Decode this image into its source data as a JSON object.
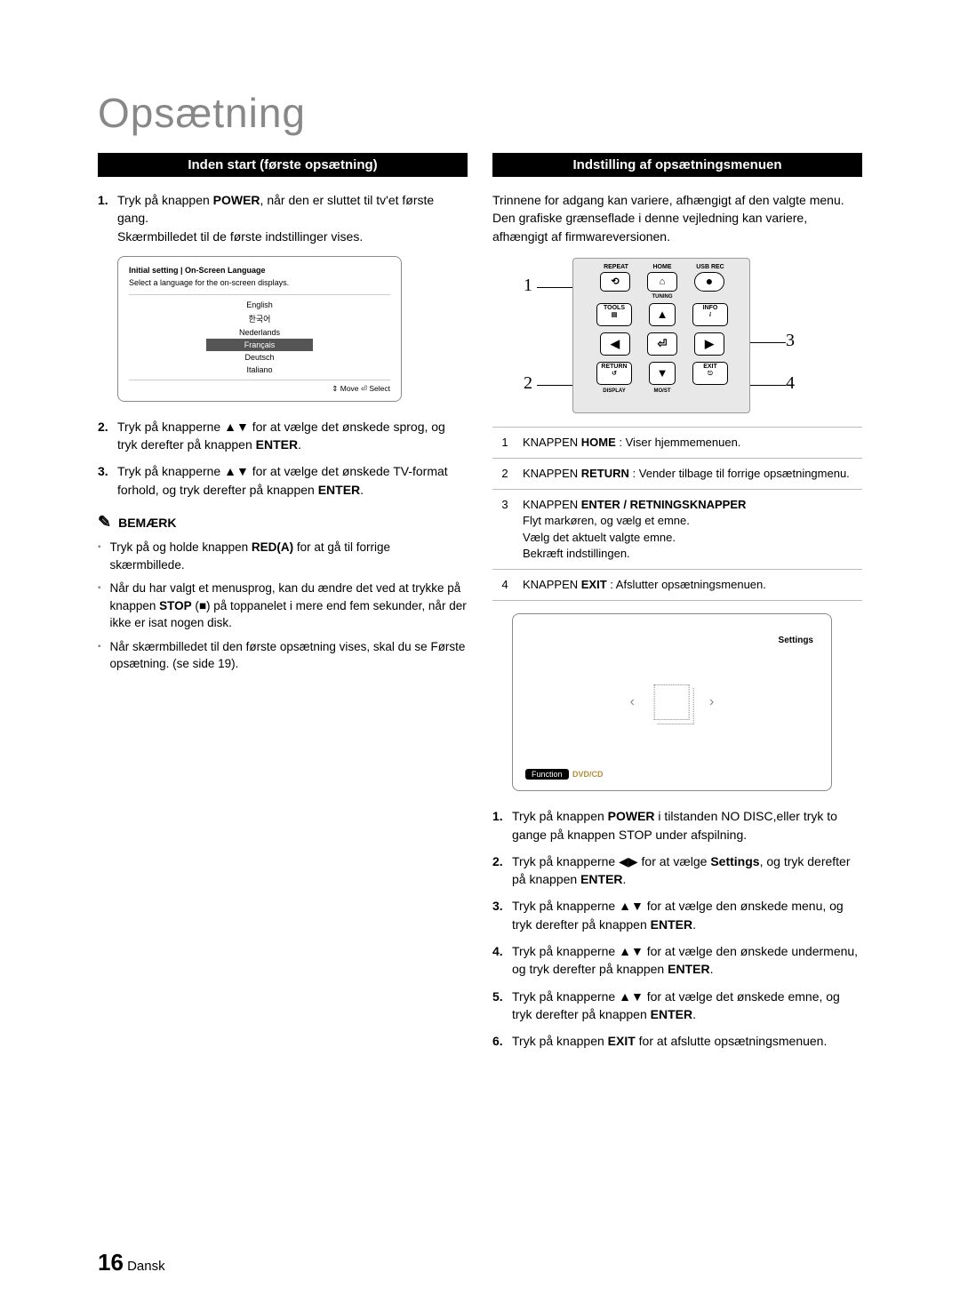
{
  "page_title": "Opsætning",
  "left": {
    "heading": "Inden start (første opsætning)",
    "steps": [
      "Tryk på knappen <b>POWER</b>, når den er sluttet til tv'et første gang.<br>Skærmbilledet til de første indstillinger vises.",
      "Tryk på knapperne ▲▼ for at vælge det ønskede sprog, og tryk derefter på knappen <b>ENTER</b>.",
      "Tryk på knapperne ▲▼ for at vælge det ønskede TV-format forhold, og tryk derefter på knappen <b>ENTER</b>."
    ],
    "lang_box": {
      "title": "Initial setting | On-Screen Language",
      "subtitle": "Select a language for the on-screen displays.",
      "items": [
        "English",
        "한국어",
        "Nederlands",
        "Français",
        "Deutsch",
        "Italiano"
      ],
      "selected_index": 3,
      "bottom": "⇕ Move    ⏎ Select"
    },
    "note_label": "BEMÆRK",
    "notes": [
      "Tryk på og holde knappen <b>RED(A)</b> for at gå til forrige skærmbillede.",
      "Når du har valgt et menusprog, kan du ændre det ved at trykke på knappen <b>STOP</b> (■) på toppanelet i mere end fem sekunder, når der ikke er isat nogen disk.",
      "Når skærmbilledet til den første opsætning vises, skal du se Første opsætning. (se side 19)."
    ]
  },
  "right": {
    "heading": "Indstilling af opsætningsmenuen",
    "intro": "Trinnene for adgang kan variere, afhængigt af den valgte menu. Den grafiske grænseflade i denne vejledning kan variere, afhængigt af firmwareversionen.",
    "remote_labels": {
      "repeat": "REPEAT",
      "home": "HOME",
      "usbrec": "USB REC",
      "tools": "TOOLS",
      "info": "INFO",
      "return": "RETURN",
      "exit": "EXIT",
      "tuning": "TUNING",
      "display": "DISPLAY",
      "most": "MO/ST"
    },
    "legend": [
      "KNAPPEN <b>HOME</b> : Viser hjemmemenuen.",
      "KNAPPEN <b>RETURN</b> : Vender tilbage til forrige opsætningmenu.",
      "KNAPPEN <b>ENTER / RETNINGSKNAPPER</b><br>Flyt markøren, og vælg et emne.<br>Vælg det aktuelt valgte emne.<br>Bekræft indstillingen.",
      "KNAPPEN <b>EXIT</b> : Afslutter opsætningsmenuen."
    ],
    "screen": {
      "title": "Settings",
      "function_label": "Function",
      "mode": "DVD/CD"
    },
    "steps": [
      "Tryk på knappen <b>POWER</b> i tilstanden NO DISC,eller tryk to gange på knappen STOP under afspilning.",
      "Tryk på knapperne ◀▶ for at vælge <b>Settings</b>, og tryk derefter på knappen <b>ENTER</b>.",
      "Tryk på knapperne ▲▼ for at vælge den ønskede menu, og tryk derefter på knappen <b>ENTER</b>.",
      "Tryk på knapperne ▲▼ for at vælge den ønskede undermenu, og tryk derefter på knappen <b>ENTER</b>.",
      "Tryk på knapperne ▲▼ for at vælge det ønskede emne, og tryk derefter på knappen <b>ENTER</b>.",
      "Tryk på knappen <b>EXIT</b> for at afslutte opsætningsmenuen."
    ]
  },
  "footer": {
    "page": "16",
    "lang": "Dansk"
  }
}
